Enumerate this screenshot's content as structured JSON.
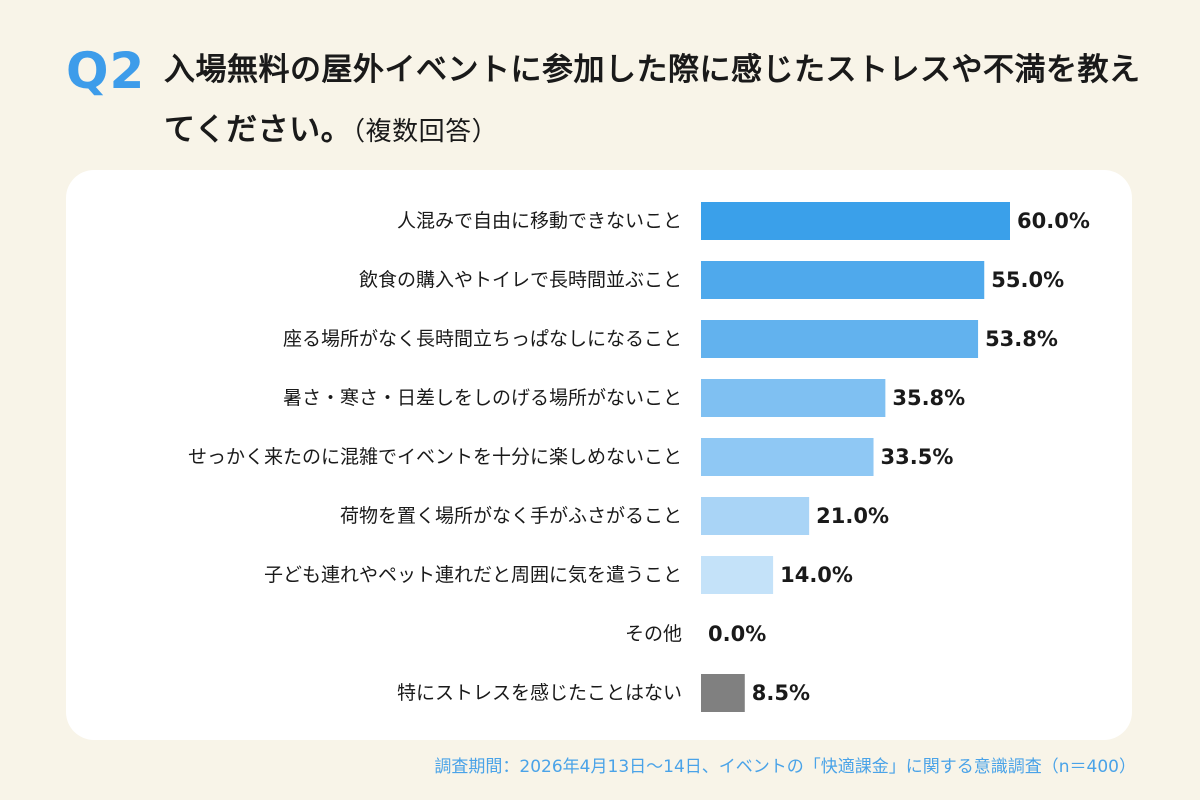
{
  "header": {
    "question_number": "Q2",
    "title": "入場無料の屋外イベントに参加した際に感じたストレスや不満を教えてください。",
    "title_note": "（複数回答）"
  },
  "chart_data": {
    "type": "bar",
    "orientation": "horizontal",
    "categories": [
      "人混みで自由に移動できないこと",
      "飲食の購入やトイレで長時間並ぶこと",
      "座る場所がなく長時間立ちっぱなしになること",
      "暑さ・寒さ・日差しをしのげる場所がないこと",
      "せっかく来たのに混雑でイベントを十分に楽しめないこと",
      "荷物を置く場所がなく手がふさがること",
      "子ども連れやペット連れだと周囲に気を遣うこと",
      "その他",
      "特にストレスを感じたことはない"
    ],
    "values": [
      60.0,
      55.0,
      53.8,
      35.8,
      33.5,
      21.0,
      14.0,
      0.0,
      8.5
    ],
    "value_labels": [
      "60.0%",
      "55.0%",
      "53.8%",
      "35.8%",
      "33.5%",
      "21.0%",
      "14.0%",
      "0.0%",
      "8.5%"
    ],
    "colors": [
      "#3aa0ea",
      "#4fa9ec",
      "#62b2ee",
      "#7fc0f2",
      "#8fc8f4",
      "#a9d4f6",
      "#c4e2f9",
      "#c4e2f9",
      "#808080"
    ],
    "xlim": [
      0,
      60
    ],
    "grid": false,
    "legend": "none"
  },
  "footer": {
    "source": "調査期間：2026年4月13日～14日、イベントの「快適課金」に関する意識調査（n＝400）"
  }
}
